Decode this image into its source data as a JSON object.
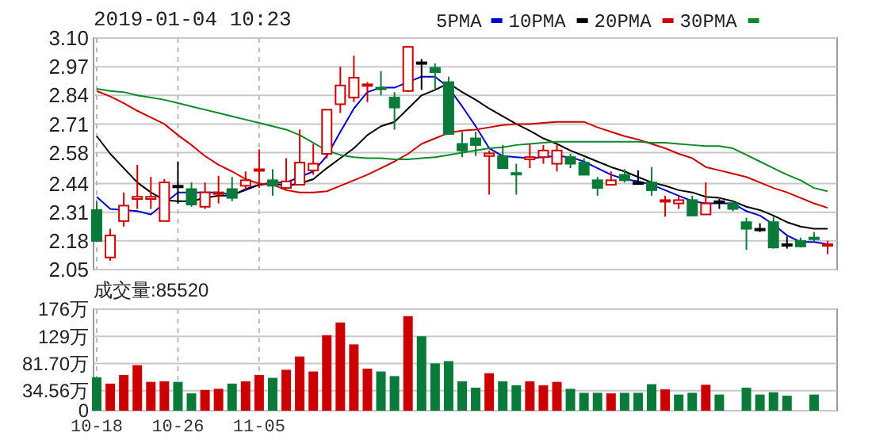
{
  "chart_data": [
    {
      "type": "candlestick",
      "title": "2019-01-04 10:23",
      "legend": "top",
      "grid": true,
      "tick_labels": "y",
      "categories": [
        null,
        null,
        null,
        null,
        null,
        null,
        null,
        null,
        null,
        null,
        null,
        null,
        null,
        null,
        null,
        null,
        null,
        null,
        null,
        null,
        null,
        null,
        null,
        null,
        null,
        null,
        null,
        null,
        null,
        null,
        null,
        null,
        null,
        null,
        null,
        null,
        null,
        null,
        null,
        null,
        null,
        null,
        null,
        null,
        null,
        null,
        null,
        null,
        null,
        null,
        null,
        null,
        null,
        null,
        null
      ],
      "ylim": [
        2.05,
        3.1
      ],
      "yticks": [
        {
          "value": 2.05,
          "label": "2.05"
        },
        {
          "value": 2.18,
          "label": "2.18"
        },
        {
          "value": 2.31,
          "label": "2.31"
        },
        {
          "value": 2.44,
          "label": "2.44"
        },
        {
          "value": 2.58,
          "label": "2.58"
        },
        {
          "value": 2.71,
          "label": "2.71"
        },
        {
          "value": 2.84,
          "label": "2.84"
        },
        {
          "value": 2.97,
          "label": "2.97"
        },
        {
          "value": 3.1,
          "label": "3.10"
        }
      ],
      "ohlc": [
        [
          2.32,
          2.36,
          2.18,
          2.18
        ],
        [
          2.105,
          2.235,
          2.09,
          2.205
        ],
        [
          2.27,
          2.4,
          2.245,
          2.34
        ],
        [
          2.37,
          2.525,
          2.325,
          2.38
        ],
        [
          2.37,
          2.47,
          2.325,
          2.38
        ],
        [
          2.27,
          2.46,
          2.27,
          2.445
        ],
        [
          2.43,
          2.54,
          2.35,
          2.43
        ],
        [
          2.415,
          2.445,
          2.335,
          2.345
        ],
        [
          2.335,
          2.445,
          2.325,
          2.4
        ],
        [
          2.395,
          2.475,
          2.35,
          2.4
        ],
        [
          2.415,
          2.47,
          2.36,
          2.375
        ],
        [
          2.43,
          2.495,
          2.41,
          2.455
        ],
        [
          2.5,
          2.595,
          2.42,
          2.505
        ],
        [
          2.455,
          2.505,
          2.385,
          2.43
        ],
        [
          2.42,
          2.555,
          2.415,
          2.45
        ],
        [
          2.435,
          2.685,
          2.435,
          2.535
        ],
        [
          2.5,
          2.62,
          2.48,
          2.53
        ],
        [
          2.575,
          2.775,
          2.555,
          2.775
        ],
        [
          2.8,
          2.97,
          2.76,
          2.885
        ],
        [
          2.83,
          3.02,
          2.81,
          2.92
        ],
        [
          2.885,
          2.9,
          2.81,
          2.89
        ],
        [
          2.875,
          2.95,
          2.84,
          2.87
        ],
        [
          2.83,
          2.855,
          2.685,
          2.785
        ],
        [
          2.86,
          3.06,
          2.855,
          3.06
        ],
        [
          2.99,
          3.005,
          2.865,
          2.99
        ],
        [
          2.965,
          2.985,
          2.87,
          2.945
        ],
        [
          2.9,
          2.925,
          2.665,
          2.665
        ],
        [
          2.62,
          2.675,
          2.56,
          2.59
        ],
        [
          2.645,
          2.675,
          2.565,
          2.615
        ],
        [
          2.565,
          2.59,
          2.39,
          2.577
        ],
        [
          2.565,
          2.615,
          2.51,
          2.51
        ],
        [
          2.488,
          2.53,
          2.39,
          2.485
        ],
        [
          2.55,
          2.62,
          2.51,
          2.56
        ],
        [
          2.56,
          2.615,
          2.53,
          2.59
        ],
        [
          2.53,
          2.615,
          2.495,
          2.59
        ],
        [
          2.56,
          2.575,
          2.51,
          2.53
        ],
        [
          2.535,
          2.555,
          2.48,
          2.48
        ],
        [
          2.455,
          2.47,
          2.385,
          2.42
        ],
        [
          2.435,
          2.495,
          2.43,
          2.455
        ],
        [
          2.48,
          2.505,
          2.445,
          2.455
        ],
        [
          2.445,
          2.5,
          2.435,
          2.445
        ],
        [
          2.445,
          2.515,
          2.385,
          2.41
        ],
        [
          2.36,
          2.385,
          2.29,
          2.365
        ],
        [
          2.35,
          2.385,
          2.325,
          2.365
        ],
        [
          2.365,
          2.385,
          2.295,
          2.295
        ],
        [
          2.3,
          2.445,
          2.3,
          2.35
        ],
        [
          2.36,
          2.37,
          2.325,
          2.36
        ],
        [
          2.35,
          2.36,
          2.315,
          2.325
        ],
        [
          2.265,
          2.285,
          2.14,
          2.235
        ],
        [
          2.235,
          2.26,
          2.22,
          2.235
        ],
        [
          2.265,
          2.29,
          2.145,
          2.15
        ],
        [
          2.165,
          2.2,
          2.145,
          2.165
        ],
        [
          2.18,
          2.195,
          2.15,
          2.155
        ],
        [
          2.195,
          2.22,
          2.175,
          2.19
        ],
        [
          2.16,
          2.18,
          2.12,
          2.165
        ]
      ],
      "colors": [
        "#0a7a3a",
        "#cc0000",
        "#cc0000",
        "#cc0000",
        "#cc0000",
        "#cc0000",
        "#000000",
        "#0a7a3a",
        "#cc0000",
        "#cc0000",
        "#0a7a3a",
        "#cc0000",
        "#cc0000",
        "#0a7a3a",
        "#cc0000",
        "#cc0000",
        "#cc0000",
        "#cc0000",
        "#cc0000",
        "#cc0000",
        "#cc0000",
        "#0a7a3a",
        "#0a7a3a",
        "#cc0000",
        "#000000",
        "#0a7a3a",
        "#0a7a3a",
        "#0a7a3a",
        "#0a7a3a",
        "#cc0000",
        "#0a7a3a",
        "#0a7a3a",
        "#cc0000",
        "#cc0000",
        "#cc0000",
        "#0a7a3a",
        "#0a7a3a",
        "#0a7a3a",
        "#cc0000",
        "#0a7a3a",
        "#000000",
        "#0a7a3a",
        "#cc0000",
        "#cc0000",
        "#0a7a3a",
        "#cc0000",
        "#000000",
        "#0a7a3a",
        "#0a7a3a",
        "#000000",
        "#0a7a3a",
        "#000000",
        "#0a7a3a",
        "#0a7a3a",
        "#cc0000"
      ],
      "series": [
        {
          "type": "line",
          "name": "5PMA",
          "color": "#0000cc",
          "values": [
            2.38,
            2.325,
            2.32,
            2.315,
            2.3,
            2.35,
            2.4,
            2.4,
            2.4,
            2.4,
            2.39,
            2.41,
            2.435,
            2.445,
            2.445,
            2.47,
            2.495,
            2.565,
            2.675,
            2.78,
            2.855,
            2.875,
            2.875,
            2.9,
            2.925,
            2.925,
            2.875,
            2.79,
            2.7,
            2.6,
            2.565,
            2.56,
            2.555,
            2.56,
            2.565,
            2.56,
            2.54,
            2.51,
            2.48,
            2.46,
            2.45,
            2.435,
            2.41,
            2.385,
            2.36,
            2.35,
            2.35,
            2.35,
            2.315,
            2.295,
            2.255,
            2.205,
            2.175,
            2.175,
            2.165
          ]
        },
        {
          "type": "line",
          "name": "10PMA",
          "color": "#000000",
          "values": [
            2.655,
            2.575,
            2.51,
            2.445,
            2.4,
            2.365,
            2.36,
            2.36,
            2.375,
            2.385,
            2.385,
            2.415,
            2.435,
            2.44,
            2.43,
            2.44,
            2.46,
            2.51,
            2.555,
            2.6,
            2.66,
            2.7,
            2.72,
            2.78,
            2.84,
            2.865,
            2.895,
            2.855,
            2.82,
            2.78,
            2.745,
            2.71,
            2.68,
            2.645,
            2.62,
            2.59,
            2.565,
            2.54,
            2.515,
            2.495,
            2.47,
            2.445,
            2.43,
            2.41,
            2.4,
            2.38,
            2.375,
            2.36,
            2.335,
            2.32,
            2.295,
            2.265,
            2.245,
            2.235,
            2.235
          ]
        },
        {
          "type": "line",
          "name": "20PMA",
          "color": "#cc0000",
          "values": [
            2.86,
            2.835,
            2.805,
            2.77,
            2.74,
            2.71,
            2.66,
            2.615,
            2.565,
            2.525,
            2.495,
            2.46,
            2.44,
            2.435,
            2.41,
            2.4,
            2.4,
            2.405,
            2.43,
            2.455,
            2.48,
            2.51,
            2.54,
            2.575,
            2.62,
            2.645,
            2.67,
            2.68,
            2.685,
            2.695,
            2.705,
            2.71,
            2.71,
            2.715,
            2.72,
            2.72,
            2.72,
            2.695,
            2.675,
            2.655,
            2.64,
            2.62,
            2.6,
            2.575,
            2.555,
            2.515,
            2.5,
            2.485,
            2.47,
            2.445,
            2.42,
            2.4,
            2.375,
            2.35,
            2.33
          ]
        },
        {
          "type": "line",
          "name": "30PMA",
          "color": "#0a8a2a",
          "values": [
            2.87,
            2.86,
            2.855,
            2.84,
            2.83,
            2.82,
            2.805,
            2.79,
            2.775,
            2.76,
            2.745,
            2.73,
            2.715,
            2.7,
            2.685,
            2.66,
            2.625,
            2.59,
            2.57,
            2.56,
            2.555,
            2.555,
            2.55,
            2.55,
            2.555,
            2.56,
            2.57,
            2.58,
            2.59,
            2.6,
            2.605,
            2.615,
            2.62,
            2.625,
            2.63,
            2.63,
            2.63,
            2.63,
            2.63,
            2.63,
            2.63,
            2.625,
            2.625,
            2.62,
            2.615,
            2.61,
            2.61,
            2.6,
            2.57,
            2.54,
            2.51,
            2.48,
            2.455,
            2.42,
            2.405
          ]
        }
      ]
    },
    {
      "type": "bar",
      "grid": true,
      "annotations": [
        "成交量:85520"
      ],
      "categories": [
        "10-18",
        null,
        null,
        null,
        null,
        null,
        "10-26",
        null,
        null,
        null,
        null,
        null,
        "11-05",
        null,
        null,
        null,
        null,
        null,
        null,
        null,
        null,
        null,
        null,
        null,
        null,
        null,
        null,
        null,
        null,
        null,
        null,
        null,
        null,
        null,
        null,
        null,
        null,
        null,
        null,
        null,
        null,
        null,
        null,
        null,
        null,
        null,
        null,
        null,
        null,
        null,
        null,
        null,
        null,
        null,
        null
      ],
      "ylim": [
        0,
        176
      ],
      "yticks": [
        0,
        {
          "value": 34.56,
          "label": "34.56万"
        },
        {
          "value": 81.7,
          "label": "81.70万"
        },
        {
          "value": 129,
          "label": "129万"
        },
        {
          "value": 176,
          "label": "176万"
        }
      ],
      "values": [
        58,
        47,
        62,
        79,
        50,
        51,
        50,
        30,
        36,
        38,
        47,
        51,
        62,
        57,
        71,
        94,
        68,
        131,
        153,
        115,
        73,
        68,
        60,
        164,
        129,
        82,
        86,
        51,
        40,
        65,
        51,
        44,
        51,
        44,
        50,
        38,
        31,
        31,
        30,
        31,
        31,
        46,
        37,
        28,
        31,
        45,
        28,
        null,
        40,
        28,
        32,
        26,
        null,
        28,
        null
      ],
      "colors": [
        "#0a7a3a",
        "#cc0000",
        "#cc0000",
        "#cc0000",
        "#cc0000",
        "#cc0000",
        "#0a7a3a",
        "#0a7a3a",
        "#cc0000",
        "#cc0000",
        "#0a7a3a",
        "#cc0000",
        "#cc0000",
        "#0a7a3a",
        "#cc0000",
        "#cc0000",
        "#cc0000",
        "#cc0000",
        "#cc0000",
        "#cc0000",
        "#cc0000",
        "#0a7a3a",
        "#0a7a3a",
        "#cc0000",
        "#0a7a3a",
        "#0a7a3a",
        "#0a7a3a",
        "#0a7a3a",
        "#0a7a3a",
        "#cc0000",
        "#0a7a3a",
        "#0a7a3a",
        "#cc0000",
        "#cc0000",
        "#cc0000",
        "#0a7a3a",
        "#0a7a3a",
        "#0a7a3a",
        "#cc0000",
        "#0a7a3a",
        "#0a7a3a",
        "#0a7a3a",
        "#cc0000",
        "#0a7a3a",
        "#0a7a3a",
        "#cc0000",
        "#0a7a3a",
        "#0a7a3a",
        "#0a7a3a",
        "#0a7a3a",
        "#0a7a3a",
        "#0a7a3a",
        "#0a7a3a",
        "#0a7a3a",
        "#cc0000"
      ]
    }
  ]
}
